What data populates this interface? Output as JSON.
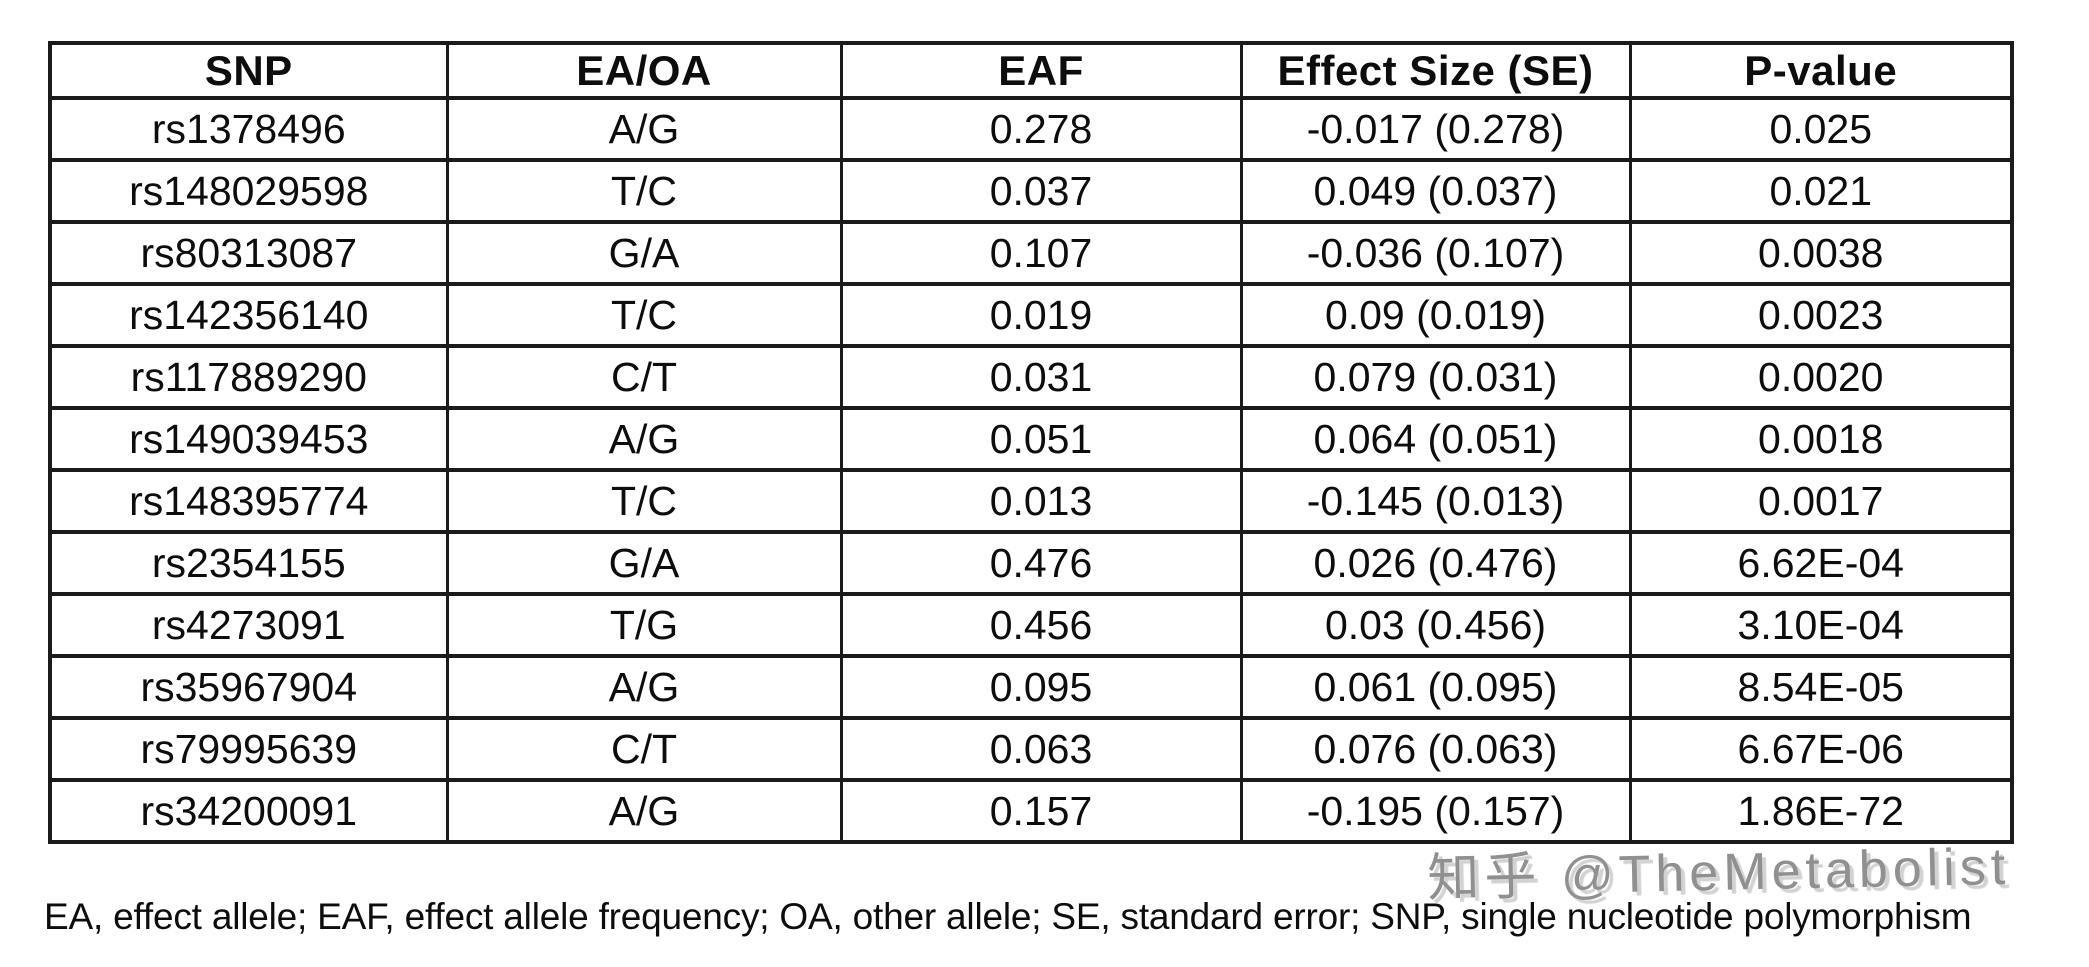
{
  "chart_data": {
    "type": "table",
    "columns": [
      "SNP",
      "EA/OA",
      "EAF",
      "Effect Size (SE)",
      "P-value"
    ],
    "rows": [
      [
        "rs1378496",
        "A/G",
        "0.278",
        "-0.017 (0.278)",
        "0.025"
      ],
      [
        "rs148029598",
        "T/C",
        "0.037",
        "0.049 (0.037)",
        "0.021"
      ],
      [
        "rs80313087",
        "G/A",
        "0.107",
        "-0.036 (0.107)",
        "0.0038"
      ],
      [
        "rs142356140",
        "T/C",
        "0.019",
        "0.09 (0.019)",
        "0.0023"
      ],
      [
        "rs117889290",
        "C/T",
        "0.031",
        "0.079 (0.031)",
        "0.0020"
      ],
      [
        "rs149039453",
        "A/G",
        "0.051",
        "0.064 (0.051)",
        "0.0018"
      ],
      [
        "rs148395774",
        "T/C",
        "0.013",
        "-0.145 (0.013)",
        "0.0017"
      ],
      [
        "rs2354155",
        "G/A",
        "0.476",
        "0.026 (0.476)",
        "6.62E-04"
      ],
      [
        "rs4273091",
        "T/G",
        "0.456",
        "0.03 (0.456)",
        "3.10E-04"
      ],
      [
        "rs35967904",
        "A/G",
        "0.095",
        "0.061 (0.095)",
        "8.54E-05"
      ],
      [
        "rs79995639",
        "C/T",
        "0.063",
        "0.076 (0.063)",
        "6.67E-06"
      ],
      [
        "rs34200091",
        "A/G",
        "0.157",
        "-0.195 (0.157)",
        "1.86E-72"
      ]
    ]
  },
  "footnote": "EA, effect allele; EAF, effect allele frequency; OA, other allele; SE, standard error; SNP, single nucleotide polymorphism",
  "watermark": "知乎 @TheMetabolist",
  "colors": {
    "text": "#0d0d0d",
    "border": "#1b1b1b",
    "watermark": "#909090",
    "watermark_shadow": "#d2d2d2",
    "background": "#ffffff"
  }
}
